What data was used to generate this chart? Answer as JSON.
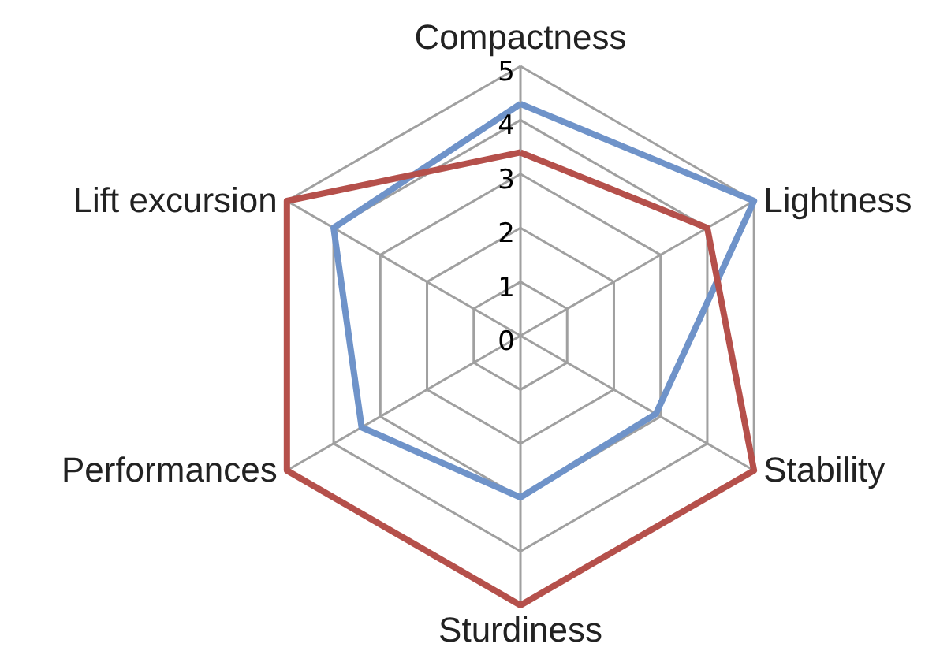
{
  "chart_data": {
    "type": "radar",
    "categories": [
      "Compactness",
      "Lightness",
      "Stability",
      "Sturdiness",
      "Performances",
      "Lift excursion"
    ],
    "series": [
      {
        "color": "#6f93c9",
        "values": [
          4.3,
          5,
          2.9,
          3,
          3.4,
          4
        ]
      },
      {
        "color": "#b5504b",
        "values": [
          3.4,
          4,
          5,
          5,
          5,
          5
        ]
      }
    ],
    "ylim": [
      0,
      5
    ],
    "yticks": [
      0,
      1,
      2,
      3,
      4,
      5
    ],
    "grid": true,
    "marker": "none",
    "line_style": "solid"
  }
}
